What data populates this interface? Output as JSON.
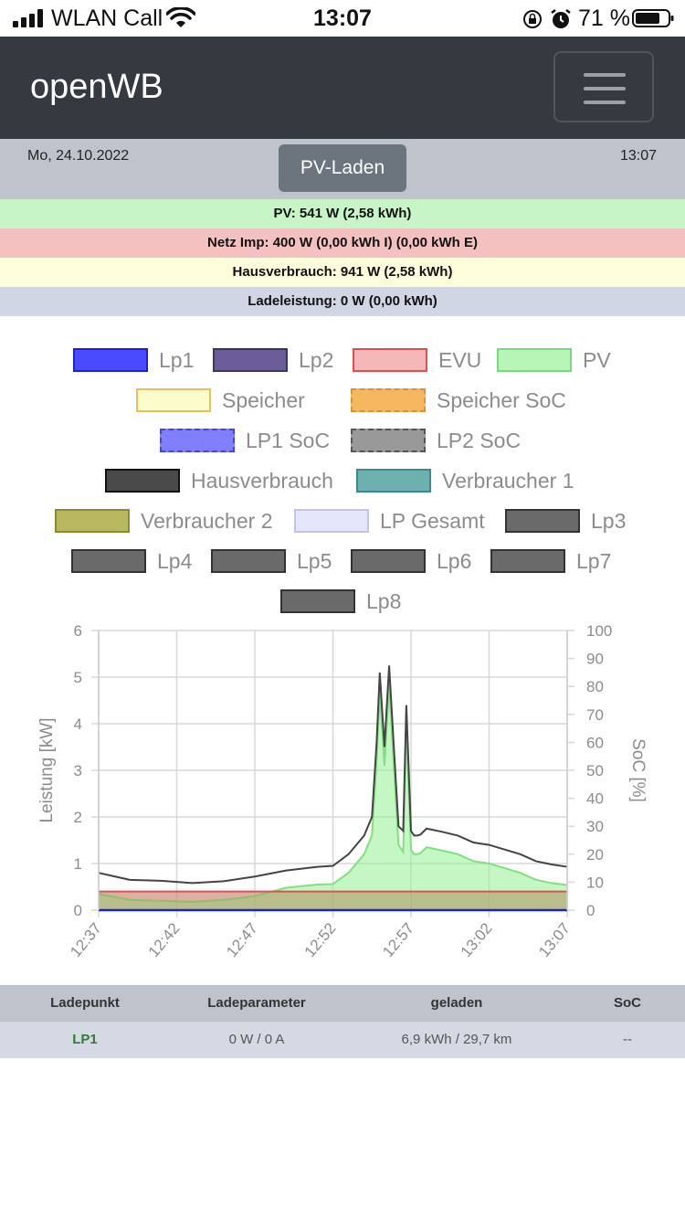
{
  "status_bar": {
    "carrier": "WLAN Call",
    "time": "13:07",
    "battery_percent": "71 %"
  },
  "navbar": {
    "brand": "openWB"
  },
  "info": {
    "date": "Mo, 24.10.2022",
    "time": "13:07",
    "mode_label": "PV-Laden"
  },
  "strips": {
    "pv": "PV: 541 W (2,58 kWh)",
    "grid": "Netz Imp: 400 W (0,00 kWh I) (0,00 kWh E)",
    "house": "Hausverbrauch: 941 W (2,58 kWh)",
    "charge": "Ladeleistung: 0 W (0,00 kWh)"
  },
  "colors": {
    "pv_strip": "#c8f5c8",
    "grid_strip": "#f4c0c0",
    "house_strip": "#fefedc",
    "charge_strip": "#d0d6e4"
  },
  "legend": {
    "items": [
      {
        "label": "Lp1",
        "fill": "#4a4aff",
        "border": "#2020d0",
        "dashed": false
      },
      {
        "label": "Lp2",
        "fill": "#6b5e98",
        "border": "#3e3460",
        "dashed": false
      },
      {
        "label": "EVU",
        "fill": "#f4b8b8",
        "border": "#e05050",
        "dashed": false
      },
      {
        "label": "PV",
        "fill": "#b6f5b6",
        "border": "#7ed67e",
        "dashed": false
      },
      {
        "label": "Speicher",
        "fill": "#fbfbcc",
        "border": "#e8c060",
        "dashed": false
      },
      {
        "label": "Speicher SoC",
        "fill": "#f4b860",
        "border": "#e09030",
        "dashed": true
      },
      {
        "label": "LP1 SoC",
        "fill": "#8080ff",
        "border": "#4040ff",
        "dashed": true
      },
      {
        "label": "LP2 SoC",
        "fill": "#999999",
        "border": "#555555",
        "dashed": true
      },
      {
        "label": "Hausverbrauch",
        "fill": "#4a4a4a",
        "border": "#111111",
        "dashed": false
      },
      {
        "label": "Verbraucher 1",
        "fill": "#6cb0b0",
        "border": "#3a8a8a",
        "dashed": false
      },
      {
        "label": "Verbraucher 2",
        "fill": "#b8b860",
        "border": "#8a8a30",
        "dashed": false
      },
      {
        "label": "LP Gesamt",
        "fill": "#e4e4fa",
        "border": "#c4c4e4",
        "dashed": false
      },
      {
        "label": "Lp3",
        "fill": "#6a6a6a",
        "border": "#333333",
        "dashed": false
      },
      {
        "label": "Lp4",
        "fill": "#6a6a6a",
        "border": "#333333",
        "dashed": false
      },
      {
        "label": "Lp5",
        "fill": "#6a6a6a",
        "border": "#333333",
        "dashed": false
      },
      {
        "label": "Lp6",
        "fill": "#6a6a6a",
        "border": "#333333",
        "dashed": false
      },
      {
        "label": "Lp7",
        "fill": "#6a6a6a",
        "border": "#333333",
        "dashed": false
      },
      {
        "label": "Lp8",
        "fill": "#6a6a6a",
        "border": "#333333",
        "dashed": false
      }
    ]
  },
  "chart_data": {
    "type": "area",
    "xlabel": "",
    "ylabel": "Leistung [kW]",
    "y2label": "SoC [%]",
    "ylim": [
      0,
      6
    ],
    "y2lim": [
      0,
      100
    ],
    "yticks": [
      "0",
      "1",
      "2",
      "3",
      "4",
      "5",
      "6"
    ],
    "y2ticks": [
      "0",
      "10",
      "20",
      "30",
      "40",
      "50",
      "60",
      "70",
      "80",
      "90",
      "100"
    ],
    "xlim": [
      0,
      30
    ],
    "x_tick_labels": [
      "12:37",
      "12:42",
      "12:47",
      "12:52",
      "12:57",
      "13:02",
      "13:07"
    ],
    "x_tick_values": [
      0,
      5,
      10,
      15,
      20,
      25,
      30
    ],
    "grid": true,
    "series": [
      {
        "name": "Hausverbrauch",
        "color": "#444444",
        "x": [
          0,
          2,
          4,
          6,
          8,
          10,
          12,
          14,
          15,
          16,
          17,
          17.5,
          17.8,
          18,
          18.3,
          18.6,
          18.9,
          19.2,
          19.5,
          19.7,
          20,
          20.2,
          20.4,
          20.6,
          21,
          22,
          23,
          24,
          25,
          26,
          27,
          28,
          29,
          30
        ],
        "y": [
          0.8,
          0.65,
          0.63,
          0.58,
          0.62,
          0.72,
          0.85,
          0.93,
          0.95,
          1.2,
          1.6,
          2.0,
          3.6,
          5.1,
          3.5,
          5.25,
          3.5,
          1.8,
          1.7,
          4.4,
          1.7,
          1.6,
          1.6,
          1.62,
          1.75,
          1.68,
          1.6,
          1.45,
          1.4,
          1.3,
          1.2,
          1.05,
          0.98,
          0.93
        ]
      },
      {
        "name": "PV",
        "color": "#80e080",
        "x": [
          0,
          2,
          4,
          6,
          8,
          10,
          12,
          14,
          15,
          16,
          17,
          17.5,
          17.8,
          18,
          18.3,
          18.6,
          18.9,
          19.2,
          19.5,
          19.7,
          20,
          20.2,
          20.4,
          20.6,
          21,
          22,
          23,
          24,
          25,
          26,
          27,
          28,
          29,
          30
        ],
        "y": [
          0.35,
          0.22,
          0.2,
          0.18,
          0.22,
          0.3,
          0.48,
          0.55,
          0.56,
          0.8,
          1.2,
          1.6,
          3.2,
          4.7,
          3.1,
          4.85,
          3.1,
          1.4,
          1.25,
          4.0,
          1.3,
          1.2,
          1.2,
          1.22,
          1.35,
          1.28,
          1.2,
          1.05,
          1.0,
          0.9,
          0.8,
          0.65,
          0.58,
          0.54
        ]
      },
      {
        "name": "EVU",
        "color": "#e05050",
        "x": [
          0,
          30
        ],
        "y": [
          0.4,
          0.4
        ]
      },
      {
        "name": "Lp1",
        "color": "#2020d0",
        "x": [
          0,
          30
        ],
        "y": [
          0,
          0
        ]
      }
    ]
  },
  "table": {
    "headers": [
      "Ladepunkt",
      "Ladeparameter",
      "geladen",
      "SoC"
    ],
    "rows": [
      {
        "name": "LP1",
        "param": "0 W / 0 A",
        "charged": "6,9 kWh / 29,7 km",
        "soc": "--"
      }
    ]
  }
}
